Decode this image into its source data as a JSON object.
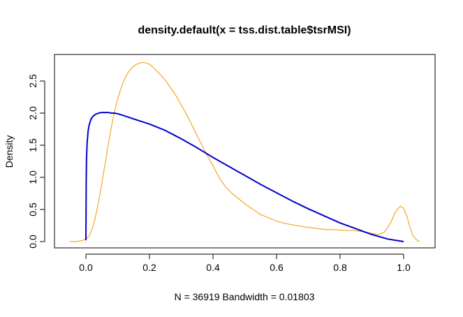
{
  "chart_data": {
    "type": "line",
    "title": "density.default(x = tss.dist.table$tsrMSI)",
    "xlabel": "N = 36919   Bandwidth = 0.01803",
    "ylabel": "Density",
    "xlim": [
      -0.05,
      1.05
    ],
    "ylim": [
      0,
      2.8
    ],
    "x_ticks": [
      0.0,
      0.2,
      0.4,
      0.6,
      0.8,
      1.0
    ],
    "x_tick_labels": [
      "0.0",
      "0.2",
      "0.4",
      "0.6",
      "0.8",
      "1.0"
    ],
    "y_ticks": [
      0.0,
      0.5,
      1.0,
      1.5,
      2.0,
      2.5
    ],
    "y_tick_labels": [
      "0.0",
      "0.5",
      "1.0",
      "1.5",
      "2.0",
      "2.5"
    ],
    "grid": false,
    "legend": "none",
    "series": [
      {
        "color": "#f5a623",
        "x": [
          -0.05,
          -0.03,
          -0.02,
          -0.01,
          0.0,
          0.01,
          0.02,
          0.03,
          0.04,
          0.05,
          0.06,
          0.07,
          0.08,
          0.09,
          0.1,
          0.11,
          0.12,
          0.13,
          0.14,
          0.15,
          0.16,
          0.17,
          0.18,
          0.19,
          0.2,
          0.21,
          0.22,
          0.23,
          0.24,
          0.25,
          0.26,
          0.28,
          0.3,
          0.32,
          0.34,
          0.36,
          0.38,
          0.4,
          0.42,
          0.44,
          0.46,
          0.48,
          0.5,
          0.52,
          0.55,
          0.58,
          0.6,
          0.62,
          0.65,
          0.7,
          0.75,
          0.8,
          0.85,
          0.9,
          0.92,
          0.94,
          0.96,
          0.97,
          0.98,
          0.99,
          1.0,
          1.01,
          1.02,
          1.03,
          1.04,
          1.05
        ],
        "y": [
          0.0,
          0.0,
          0.01,
          0.02,
          0.04,
          0.09,
          0.2,
          0.38,
          0.62,
          0.9,
          1.2,
          1.5,
          1.78,
          2.02,
          2.22,
          2.38,
          2.51,
          2.61,
          2.68,
          2.73,
          2.76,
          2.78,
          2.79,
          2.78,
          2.76,
          2.72,
          2.67,
          2.62,
          2.57,
          2.51,
          2.44,
          2.3,
          2.13,
          1.95,
          1.75,
          1.55,
          1.36,
          1.18,
          0.99,
          0.85,
          0.75,
          0.67,
          0.59,
          0.52,
          0.42,
          0.36,
          0.32,
          0.29,
          0.26,
          0.22,
          0.19,
          0.18,
          0.17,
          0.13,
          0.11,
          0.15,
          0.3,
          0.42,
          0.5,
          0.55,
          0.52,
          0.4,
          0.22,
          0.09,
          0.03,
          0.0
        ]
      },
      {
        "color": "#0000cc",
        "x": [
          0.0,
          0.0005,
          0.001,
          0.002,
          0.004,
          0.007,
          0.01,
          0.015,
          0.02,
          0.03,
          0.04,
          0.05,
          0.06,
          0.07,
          0.08,
          0.09,
          0.1,
          0.12,
          0.15,
          0.2,
          0.25,
          0.3,
          0.35,
          0.4,
          0.45,
          0.5,
          0.55,
          0.6,
          0.65,
          0.7,
          0.75,
          0.8,
          0.85,
          0.9,
          0.95,
          1.0
        ],
        "y": [
          0.02,
          0.45,
          0.95,
          1.3,
          1.55,
          1.72,
          1.81,
          1.89,
          1.94,
          1.98,
          2.0,
          2.01,
          2.01,
          2.01,
          2.0,
          2.0,
          1.99,
          1.96,
          1.91,
          1.83,
          1.73,
          1.6,
          1.46,
          1.31,
          1.17,
          1.03,
          0.89,
          0.76,
          0.63,
          0.51,
          0.4,
          0.29,
          0.2,
          0.11,
          0.04,
          0.0
        ]
      }
    ]
  }
}
